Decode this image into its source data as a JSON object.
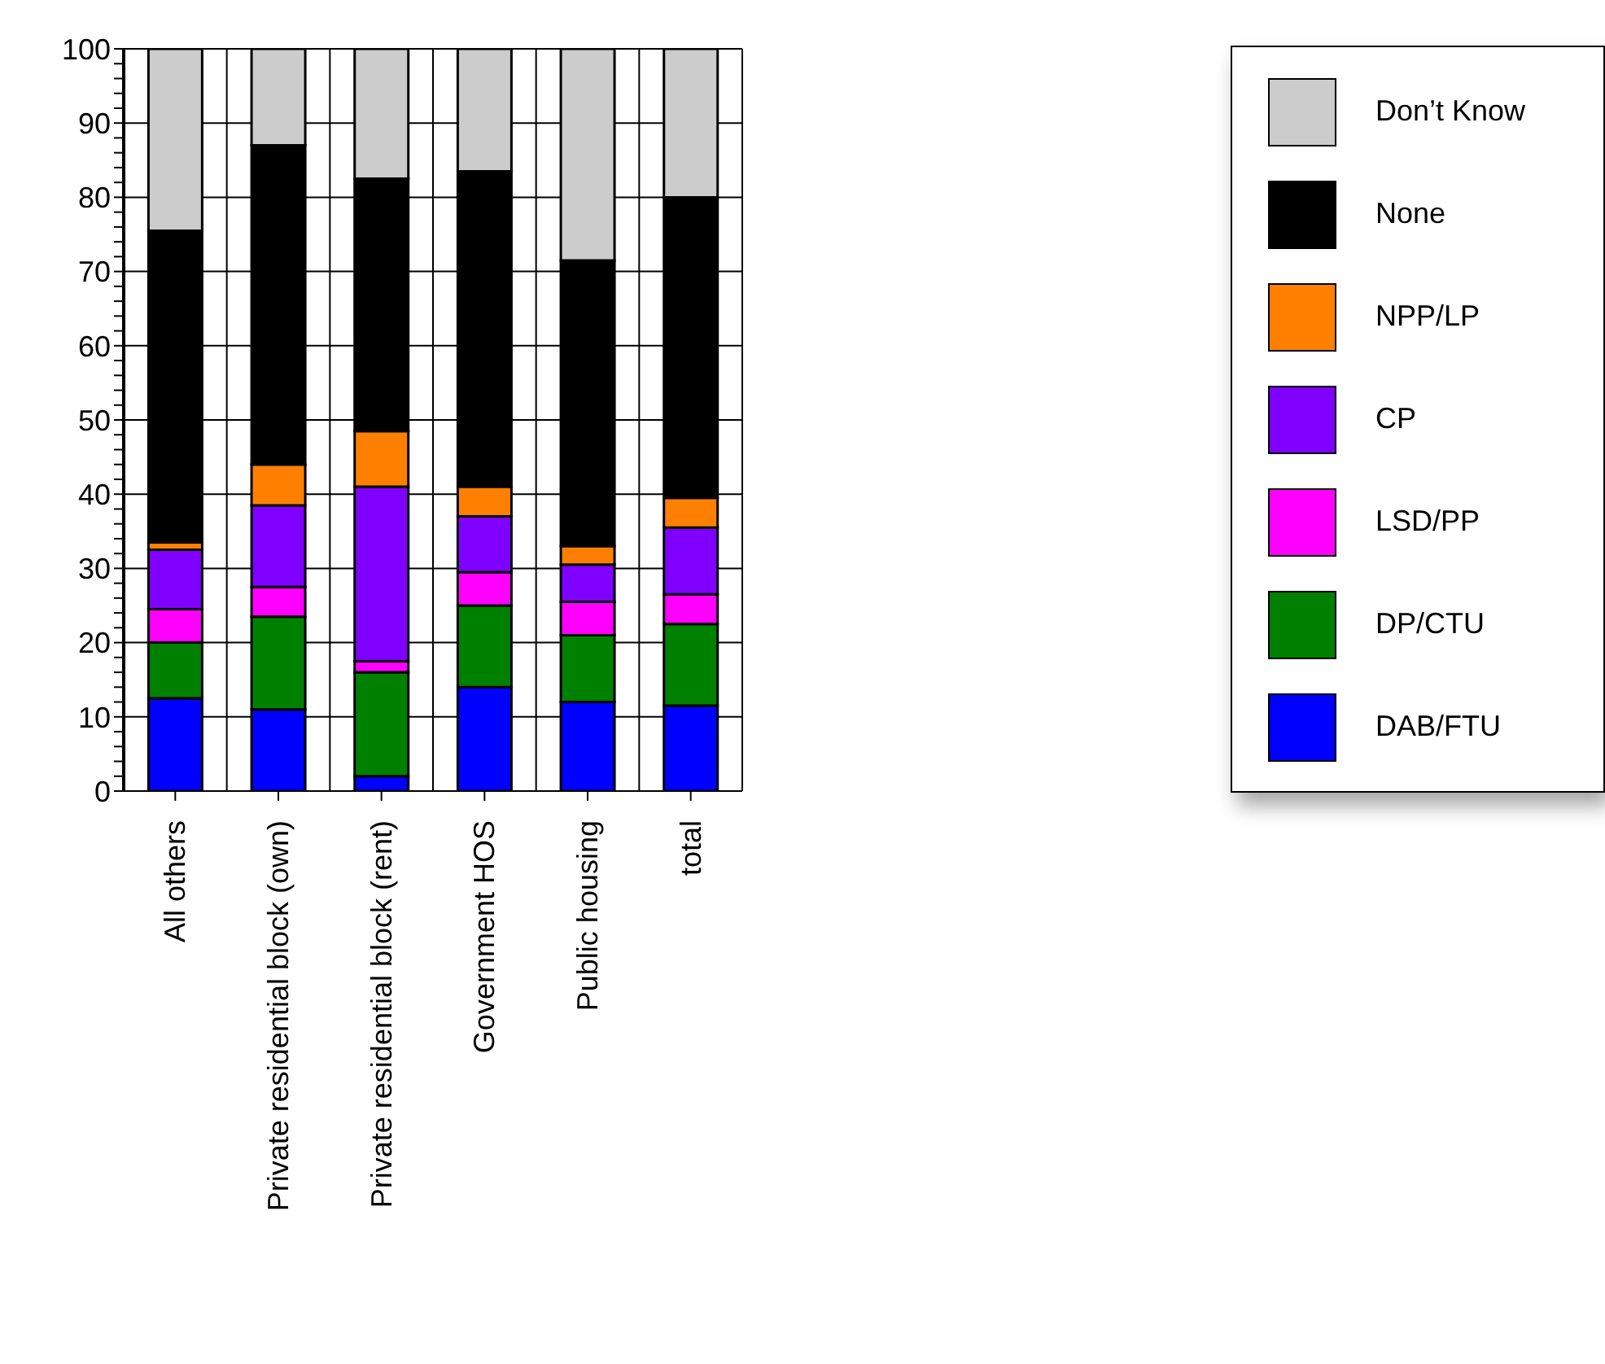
{
  "chart_data": {
    "type": "bar",
    "stacked": true,
    "categories": [
      "All others",
      "Private residential block (own)",
      "Private residential block (rent)",
      "Government HOS",
      "Public housing",
      "total"
    ],
    "series": [
      {
        "name": "DAB/FTU",
        "color": "#0000ff",
        "values": [
          12.5,
          11,
          2,
          14,
          12,
          11.5
        ]
      },
      {
        "name": "DP/CTU",
        "color": "#008000",
        "values": [
          7.5,
          12.5,
          14,
          11,
          9,
          11
        ]
      },
      {
        "name": "LSD/PP",
        "color": "#ff00ff",
        "values": [
          4.5,
          4,
          1.5,
          4.5,
          4.5,
          4
        ]
      },
      {
        "name": "CP",
        "color": "#8000ff",
        "values": [
          8,
          11,
          23.5,
          7.5,
          5,
          9
        ]
      },
      {
        "name": "NPP/LP",
        "color": "#ff8000",
        "values": [
          1,
          5.5,
          7.5,
          4,
          2.5,
          4
        ]
      },
      {
        "name": "None",
        "color": "#000000",
        "values": [
          42,
          43,
          34,
          42.5,
          38.5,
          40.5
        ]
      },
      {
        "name": "Don’t Know",
        "color": "#cccccc",
        "values": [
          24.5,
          13,
          17.5,
          16.5,
          28.5,
          20
        ]
      }
    ],
    "ylim": [
      0,
      100
    ],
    "yticks": [
      0,
      {
        "value": 2,
        "label": null
      },
      {
        "value": 4,
        "label": null
      },
      {
        "value": 6,
        "label": null
      },
      {
        "value": 8,
        "label": null
      },
      10,
      {
        "value": 12,
        "label": null
      },
      {
        "value": 14,
        "label": null
      },
      {
        "value": 16,
        "label": null
      },
      {
        "value": 18,
        "label": null
      },
      20,
      {
        "value": 22,
        "label": null
      },
      {
        "value": 24,
        "label": null
      },
      {
        "value": 26,
        "label": null
      },
      {
        "value": 28,
        "label": null
      },
      30,
      {
        "value": 32,
        "label": null
      },
      {
        "value": 34,
        "label": null
      },
      {
        "value": 36,
        "label": null
      },
      {
        "value": 38,
        "label": null
      },
      40,
      {
        "value": 42,
        "label": null
      },
      {
        "value": 44,
        "label": null
      },
      {
        "value": 46,
        "label": null
      },
      {
        "value": 48,
        "label": null
      },
      50,
      {
        "value": 52,
        "label": null
      },
      {
        "value": 54,
        "label": null
      },
      {
        "value": 56,
        "label": null
      },
      {
        "value": 58,
        "label": null
      },
      60,
      {
        "value": 62,
        "label": null
      },
      {
        "value": 64,
        "label": null
      },
      {
        "value": 66,
        "label": null
      },
      {
        "value": 68,
        "label": null
      },
      70,
      {
        "value": 72,
        "label": null
      },
      {
        "value": 74,
        "label": null
      },
      {
        "value": 76,
        "label": null
      },
      {
        "value": 78,
        "label": null
      },
      80,
      {
        "value": 82,
        "label": null
      },
      {
        "value": 84,
        "label": null
      },
      {
        "value": 86,
        "label": null
      },
      {
        "value": 88,
        "label": null
      },
      90,
      {
        "value": 92,
        "label": null
      },
      {
        "value": 94,
        "label": null
      },
      {
        "value": 96,
        "label": null
      },
      {
        "value": 98,
        "label": null
      },
      100
    ],
    "grid": true,
    "legend": "right"
  }
}
